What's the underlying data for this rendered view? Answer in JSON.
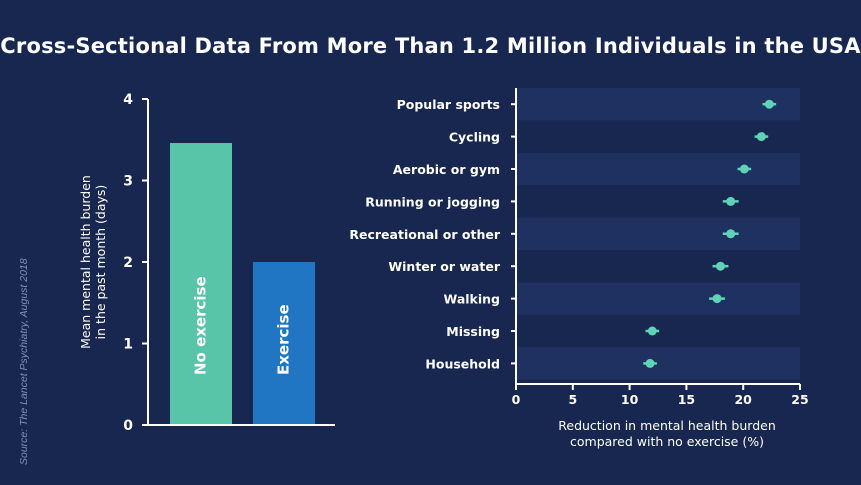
{
  "title": "Cross-Sectional Data From More Than 1.2 Million Individuals in the USA",
  "source": "Source: The Lancet Psychiatry, August 2018",
  "colors": {
    "background": "#17274f",
    "band": "#1f3160",
    "no_exercise": "#58c4a8",
    "exercise": "#2176c4",
    "dot": "#5ed3b6"
  },
  "chart_data": [
    {
      "type": "bar",
      "categories": [
        "No exercise",
        "Exercise"
      ],
      "values": [
        3.46,
        2.0
      ],
      "ylabel": "Mean mental health burden in the past month (days)",
      "ylabel_lines": [
        "Mean mental health burden",
        "in the past month (days)"
      ],
      "ylim": [
        0,
        4
      ],
      "yticks": [
        0,
        1,
        2,
        3,
        4
      ],
      "grid": false
    },
    {
      "type": "scatter",
      "categories": [
        "Popular sports",
        "Cycling",
        "Aerobic or gym",
        "Running or jogging",
        "Recreational or other",
        "Winter or water",
        "Walking",
        "Missing",
        "Household"
      ],
      "values": [
        22.3,
        21.6,
        20.1,
        18.9,
        18.9,
        18.0,
        17.7,
        12.0,
        11.8
      ],
      "ci_low": [
        21.7,
        21.0,
        19.5,
        18.2,
        18.2,
        17.3,
        17.0,
        11.4,
        11.2
      ],
      "ci_high": [
        22.9,
        22.2,
        20.7,
        19.6,
        19.6,
        18.7,
        18.4,
        12.6,
        12.4
      ],
      "xlabel": "Reduction in mental health burden compared with no exercise (%)",
      "xlabel_lines": [
        "Reduction in mental health burden",
        "compared with no exercise (%)"
      ],
      "xlim": [
        0,
        25
      ],
      "xticks": [
        0,
        5,
        10,
        15,
        20,
        25
      ],
      "grid": false
    }
  ]
}
